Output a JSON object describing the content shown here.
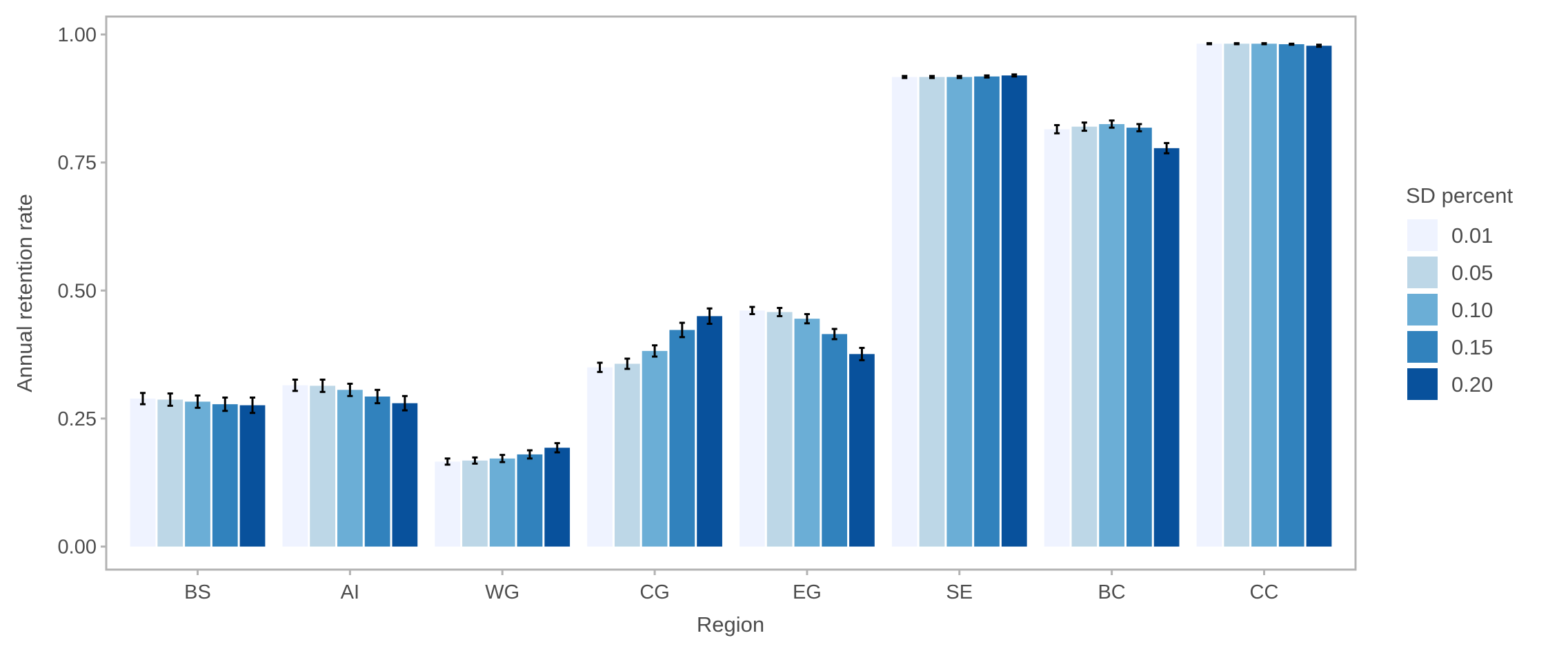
{
  "chart_data": {
    "type": "bar",
    "xlabel": "Region",
    "ylabel": "Annual retention rate",
    "ylim": [
      -0.045,
      1.035
    ],
    "yticks": [
      0.0,
      0.25,
      0.5,
      0.75,
      1.0
    ],
    "ytick_labels": [
      "0.00",
      "0.25",
      "0.50",
      "0.75",
      "1.00"
    ],
    "categories": [
      "BS",
      "AI",
      "WG",
      "CG",
      "EG",
      "SE",
      "BC",
      "CC"
    ],
    "grid": false,
    "legend": {
      "title": "SD percent",
      "placement": "right"
    },
    "series": [
      {
        "name": "0.01",
        "color": "#eff3ff",
        "values": [
          0.289,
          0.315,
          0.166,
          0.35,
          0.461,
          0.917,
          0.815,
          0.982
        ],
        "errors": [
          0.011,
          0.011,
          0.006,
          0.009,
          0.007,
          0.002,
          0.008,
          0.001
        ]
      },
      {
        "name": "0.05",
        "color": "#bdd7e7",
        "values": [
          0.287,
          0.314,
          0.168,
          0.357,
          0.458,
          0.917,
          0.82,
          0.982
        ],
        "errors": [
          0.012,
          0.012,
          0.006,
          0.01,
          0.008,
          0.002,
          0.008,
          0.001
        ]
      },
      {
        "name": "0.10",
        "color": "#6baed6",
        "values": [
          0.283,
          0.306,
          0.172,
          0.382,
          0.445,
          0.917,
          0.825,
          0.982
        ],
        "errors": [
          0.012,
          0.012,
          0.007,
          0.011,
          0.009,
          0.002,
          0.007,
          0.001
        ]
      },
      {
        "name": "0.15",
        "color": "#3182bd",
        "values": [
          0.278,
          0.293,
          0.18,
          0.423,
          0.415,
          0.918,
          0.818,
          0.981
        ],
        "errors": [
          0.013,
          0.013,
          0.008,
          0.014,
          0.01,
          0.002,
          0.007,
          0.001
        ]
      },
      {
        "name": "0.20",
        "color": "#08519c",
        "values": [
          0.276,
          0.28,
          0.193,
          0.45,
          0.376,
          0.92,
          0.778,
          0.978
        ],
        "errors": [
          0.015,
          0.014,
          0.009,
          0.015,
          0.012,
          0.002,
          0.01,
          0.002
        ]
      }
    ]
  }
}
